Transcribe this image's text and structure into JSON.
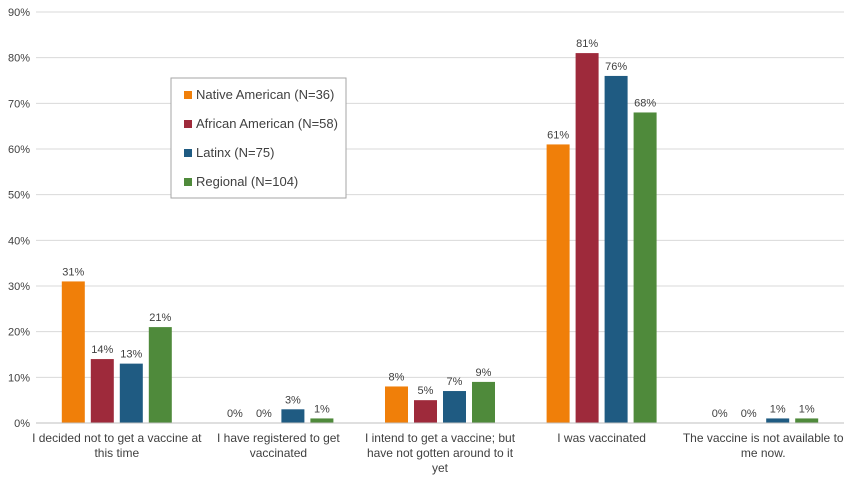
{
  "chart_data": {
    "type": "bar",
    "title": "",
    "xlabel": "",
    "ylabel": "",
    "ylim": [
      0,
      90
    ],
    "y_ticks": [
      "0%",
      "10%",
      "20%",
      "30%",
      "40%",
      "50%",
      "60%",
      "70%",
      "80%",
      "90%"
    ],
    "grid": true,
    "legend_position": "inside upper-left",
    "categories": [
      [
        "I decided not to get a vaccine at",
        "this time"
      ],
      [
        "I have registered to get",
        "vaccinated"
      ],
      [
        "I intend to get a vaccine; but",
        "have not gotten around to it",
        "yet"
      ],
      [
        "I was vaccinated"
      ],
      [
        "The vaccine is not available to",
        "me now."
      ]
    ],
    "series": [
      {
        "name": "Native American (N=36)",
        "color": "#f07f09",
        "values": [
          31,
          0,
          8,
          61,
          0
        ],
        "labels": [
          "31%",
          "0%",
          "8%",
          "61%",
          "0%"
        ]
      },
      {
        "name": "African American (N=58)",
        "color": "#9e2a3b",
        "values": [
          14,
          0,
          5,
          81,
          0
        ],
        "labels": [
          "14%",
          "0%",
          "5%",
          "81%",
          "0%"
        ]
      },
      {
        "name": "Latinx (N=75)",
        "color": "#1f5b82",
        "values": [
          13,
          3,
          7,
          76,
          1
        ],
        "labels": [
          "13%",
          "3%",
          "7%",
          "76%",
          "1%"
        ]
      },
      {
        "name": "Regional (N=104)",
        "color": "#4f8a3b",
        "values": [
          21,
          1,
          9,
          68,
          1
        ],
        "labels": [
          "21%",
          "1%",
          "9%",
          "68%",
          "1%"
        ]
      }
    ]
  }
}
